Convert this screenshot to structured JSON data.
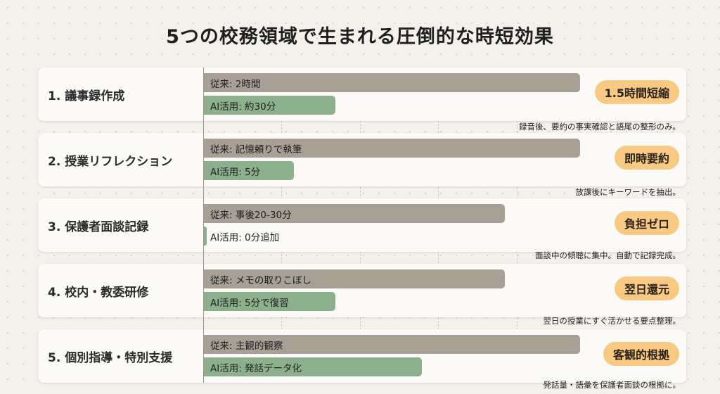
{
  "title": "5つの校務領域で生まれる圧倒的な時短効果",
  "colors": {
    "traditional_bar": "#a8a095",
    "ai_bar": "#8cb08b",
    "badge": "#f7c983",
    "background": "#f4f1ea"
  },
  "chart_data": {
    "type": "bar",
    "orientation": "horizontal",
    "title": "5つの校務領域で生まれる圧倒的な時短効果",
    "categories": [
      "1. 議事録作成",
      "2. 授業リフレクション",
      "3. 保護者面談記録",
      "4. 校内・教委研修",
      "5. 個別指導・特別支援"
    ],
    "grid": true,
    "series": [
      {
        "key": "traditional",
        "bar_labels": [
          "従来: 2時間",
          "従来: 記憶頼りで執筆",
          "従来: 事後20-30分",
          "従来: メモの取りこぼし",
          "従来: 主観的観察"
        ],
        "values": [
          1.0,
          1.0,
          0.8,
          0.8,
          1.0
        ]
      },
      {
        "key": "ai",
        "bar_labels": [
          "AI活用: 約30分",
          "AI活用: 5分",
          "AI活用: 0分追加",
          "AI活用: 5分で復習",
          "AI活用: 発話データ化"
        ],
        "values": [
          0.35,
          0.24,
          0.0,
          0.35,
          0.58
        ]
      }
    ],
    "badges": [
      "1.5時間短縮",
      "即時要約",
      "負担ゼロ",
      "翌日還元",
      "客観的根拠"
    ],
    "notes": [
      "録音後、要約の事実確認と語尾の整形のみ。",
      "放課後にキーワードを抽出。",
      "面談中の傾聴に集中。自動で記録完成。",
      "翌日の授業にすぐ活かせる要点整理。",
      "発話量・語彙を保護者面談の根拠に。"
    ]
  }
}
